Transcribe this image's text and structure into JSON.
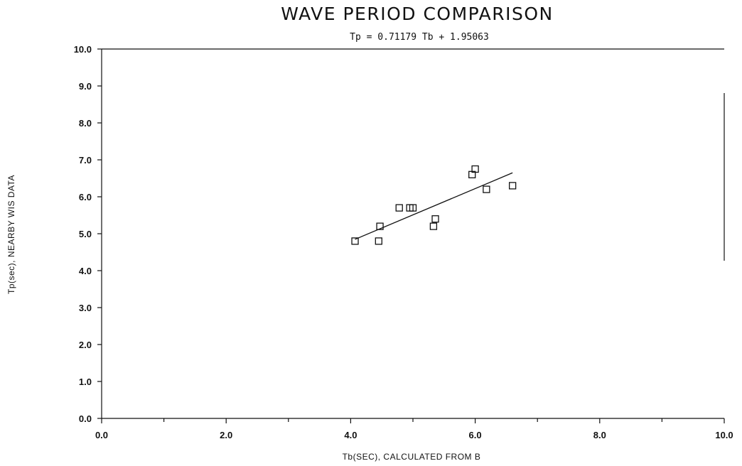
{
  "chart_data": {
    "type": "scatter",
    "title": "WAVE PERIOD COMPARISON",
    "subtitle": "Tp = 0.71179 Tb + 1.95063",
    "xlabel": "Tb(SEC), CALCULATED FROM B",
    "ylabel": "Tp(sec), NEARBY WIS DATA",
    "xlim": [
      0,
      10
    ],
    "ylim": [
      0,
      10
    ],
    "x_ticks": [
      "0.0",
      "2.0",
      "4.0",
      "6.0",
      "8.0",
      "10.0"
    ],
    "y_ticks": [
      "0.0",
      "1.0",
      "2.0",
      "3.0",
      "4.0",
      "5.0",
      "6.0",
      "7.0",
      "8.0",
      "9.0",
      "10.0"
    ],
    "grid": false,
    "series": [
      {
        "points": [
          {
            "x": 4.07,
            "y": 4.8
          },
          {
            "x": 4.45,
            "y": 4.8
          },
          {
            "x": 4.47,
            "y": 5.2
          },
          {
            "x": 4.78,
            "y": 5.7
          },
          {
            "x": 4.95,
            "y": 5.7
          },
          {
            "x": 5.0,
            "y": 5.7
          },
          {
            "x": 5.33,
            "y": 5.2
          },
          {
            "x": 5.36,
            "y": 5.4
          },
          {
            "x": 5.95,
            "y": 6.6
          },
          {
            "x": 6.0,
            "y": 6.75
          },
          {
            "x": 6.18,
            "y": 6.2
          },
          {
            "x": 6.6,
            "y": 6.3
          }
        ]
      }
    ],
    "fit_line": {
      "slope": 0.71179,
      "intercept": 1.95063,
      "x_range": [
        4.07,
        6.6
      ]
    }
  }
}
